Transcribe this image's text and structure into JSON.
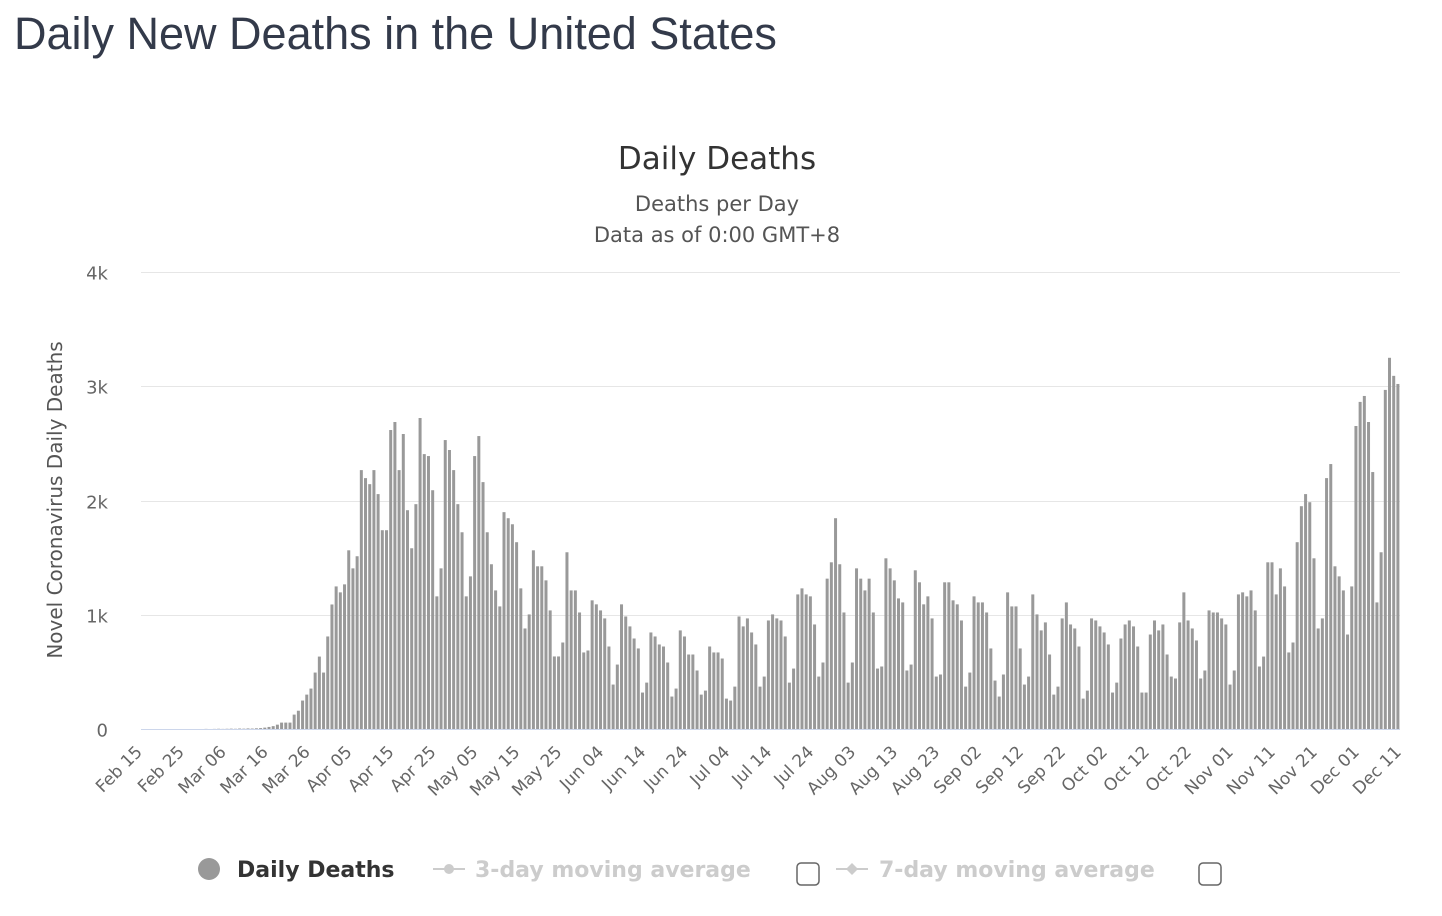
{
  "page": {
    "title": "Daily New Deaths in the United States"
  },
  "colors": {
    "bar": "#999999",
    "grid": "#e6e6e6",
    "axis": "#ccd6eb",
    "legend_inactive": "#cccccc"
  },
  "legend": {
    "items": [
      {
        "label": "Daily Deaths",
        "active": true,
        "icon": "circle-icon"
      },
      {
        "label": "3-day moving average",
        "active": false,
        "icon": "line-dot-icon",
        "checked": false
      },
      {
        "label": "7-day moving average",
        "active": false,
        "icon": "line-diamond-icon",
        "checked": false
      }
    ]
  },
  "chart_data": {
    "type": "bar",
    "title": "Daily Deaths",
    "subtitle": [
      "Deaths per Day",
      "Data as of 0:00 GMT+8"
    ],
    "xlabel": "",
    "ylabel": "Novel Coronavirus Daily Deaths",
    "ylim": [
      0,
      4000
    ],
    "y_ticks": [
      0,
      1000,
      2000,
      3000,
      4000
    ],
    "y_tick_labels": [
      "0",
      "1k",
      "2k",
      "3k",
      "4k"
    ],
    "x_range": [
      "Feb 15",
      "Dec 11"
    ],
    "x_tick_labels": [
      "Feb 15",
      "Feb 25",
      "Mar 06",
      "Mar 16",
      "Mar 26",
      "Apr 05",
      "Apr 15",
      "Apr 25",
      "May 05",
      "May 15",
      "May 25",
      "Jun 04",
      "Jun 14",
      "Jun 24",
      "Jul 04",
      "Jul 14",
      "Jul 24",
      "Aug 03",
      "Aug 13",
      "Aug 23",
      "Sep 02",
      "Sep 12",
      "Sep 22",
      "Oct 02",
      "Oct 12",
      "Oct 22",
      "Nov 01",
      "Nov 11",
      "Nov 21",
      "Dec 01",
      "Dec 11"
    ],
    "grid": true,
    "legend_position": "bottom",
    "series": [
      {
        "name": "Daily Deaths",
        "values": [
          0,
          0,
          0,
          0,
          0,
          0,
          0,
          0,
          0,
          0,
          0,
          0,
          0,
          0,
          0,
          1,
          0,
          1,
          2,
          1,
          2,
          3,
          2,
          4,
          3,
          5,
          4,
          6,
          8,
          12,
          18,
          25,
          38,
          56,
          56,
          56,
          126,
          160,
          249,
          301,
          354,
          494,
          634,
          494,
          810,
          1090,
          1248,
          1196,
          1266,
          1564,
          1406,
          1512,
          2266,
          2196,
          2143,
          2266,
          2056,
          1740,
          1740,
          2617,
          2687,
          2266,
          2582,
          1915,
          1582,
          1968,
          2722,
          2406,
          2389,
          2090,
          1161,
          1406,
          2529,
          2442,
          2266,
          1968,
          1722,
          1161,
          1336,
          2389,
          2564,
          2161,
          1722,
          1442,
          1213,
          1073,
          1898,
          1845,
          1792,
          1635,
          1231,
          880,
          1003,
          1564,
          1424,
          1424,
          1301,
          1038,
          635,
          635,
          757,
          1547,
          1213,
          1213,
          1020,
          670,
          687,
          1126,
          1091,
          1038,
          968,
          722,
          389,
          564,
          1091,
          985,
          898,
          792,
          705,
          319,
          406,
          845,
          810,
          740,
          722,
          582,
          284,
          354,
          863,
          810,
          652,
          652,
          512,
          301,
          336,
          722,
          670,
          670,
          617,
          266,
          249,
          371,
          985,
          898,
          968,
          845,
          740,
          371,
          459,
          950,
          1003,
          968,
          950,
          810,
          406,
          529,
          1178,
          1231,
          1178,
          1161,
          915,
          459,
          582,
          1316,
          1459,
          1845,
          1442,
          1020,
          406,
          582,
          1406,
          1316,
          1213,
          1316,
          1020,
          529,
          547,
          1494,
          1406,
          1301,
          1143,
          1108,
          512,
          564,
          1389,
          1284,
          1091,
          1161,
          968,
          459,
          477,
          1284,
          1284,
          1126,
          1091,
          950,
          371,
          494,
          1161,
          1108,
          1108,
          1020,
          705,
          424,
          284,
          477,
          1196,
          1073,
          1073,
          705,
          389,
          459,
          1178,
          1003,
          863,
          933,
          652,
          301,
          371,
          968,
          1108,
          915,
          880,
          722,
          266,
          336,
          968,
          950,
          898,
          845,
          740,
          319,
          406,
          792,
          915,
          950,
          898,
          722,
          319,
          319,
          827,
          950,
          863,
          915,
          652,
          459,
          442,
          933,
          1196,
          950,
          880,
          775,
          442,
          512,
          1038,
          1020,
          1020,
          968,
          915,
          389,
          512,
          1178,
          1196,
          1161,
          1213,
          1038,
          547,
          634,
          1459,
          1459,
          1178,
          1406,
          1248,
          670,
          757,
          1635,
          1950,
          2056,
          1985,
          1494,
          880,
          968,
          2196,
          2319,
          1424,
          1336,
          1213,
          827,
          1248,
          2652,
          2863,
          2915,
          2687,
          2249,
          1108,
          1547,
          2968,
          3249,
          3091,
          3020
        ]
      }
    ]
  }
}
